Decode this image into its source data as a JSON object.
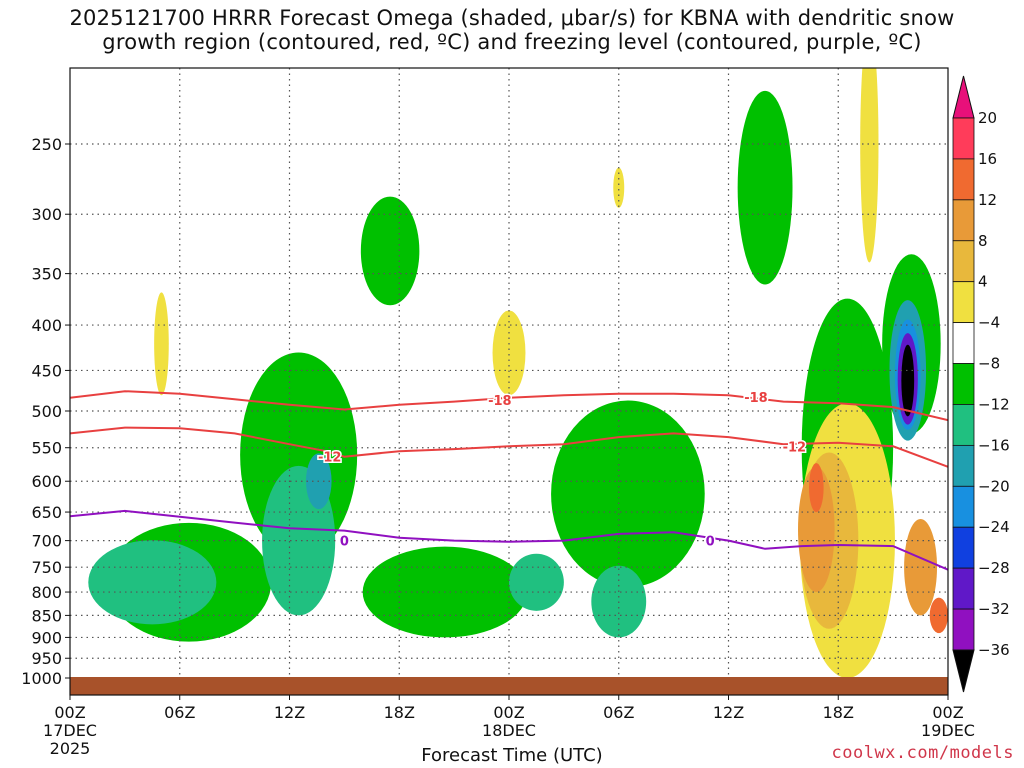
{
  "title_line1": "2025121700 HRRR Forecast Omega (shaded, μbar/s) for KBNA with dendritic snow",
  "title_line2": "growth region (contoured, red, ºC) and freezing level (contoured, purple, ºC)",
  "credit": "coolwx.com/models",
  "chart_data": {
    "type": "heatmap",
    "title": "2025121700 HRRR Forecast Omega (shaded, μbar/s) for KBNA with dendritic snow growth region (contoured, red, ºC) and freezing level (contoured, purple, ºC)",
    "xlabel": "Forecast Time (UTC)",
    "ylabel": "",
    "x_range_hours": [
      0,
      48
    ],
    "y_range_hpa": [
      1000,
      200
    ],
    "y_scale": "log-pressure",
    "grid": true,
    "y_ticks": [
      1000,
      950,
      900,
      850,
      800,
      750,
      700,
      650,
      600,
      550,
      500,
      450,
      400,
      350,
      300,
      250
    ],
    "x_ticks": [
      {
        "hour": 0,
        "label": "00Z",
        "sub": "17DEC",
        "sub2": "2025"
      },
      {
        "hour": 6,
        "label": "06Z",
        "sub": "",
        "sub2": ""
      },
      {
        "hour": 12,
        "label": "12Z",
        "sub": "",
        "sub2": ""
      },
      {
        "hour": 18,
        "label": "18Z",
        "sub": "",
        "sub2": ""
      },
      {
        "hour": 24,
        "label": "00Z",
        "sub": "18DEC",
        "sub2": ""
      },
      {
        "hour": 30,
        "label": "06Z",
        "sub": "",
        "sub2": ""
      },
      {
        "hour": 36,
        "label": "12Z",
        "sub": "",
        "sub2": ""
      },
      {
        "hour": 42,
        "label": "18Z",
        "sub": "",
        "sub2": ""
      },
      {
        "hour": 48,
        "label": "00Z",
        "sub": "19DEC",
        "sub2": ""
      }
    ],
    "colorbar": {
      "levels": [
        20,
        16,
        12,
        8,
        4,
        -4,
        -8,
        -12,
        -16,
        -20,
        -24,
        -28,
        -32,
        -36
      ],
      "colors": [
        "#ff3c5a",
        "#f06a30",
        "#e89a38",
        "#e8b83c",
        "#f0e040",
        "#ffffff",
        "#00c000",
        "#20c080",
        "#20a0b0",
        "#1890e0",
        "#1040e0",
        "#6018c8",
        "#9010c0",
        "#a0a0a0"
      ],
      "top_color": "#e8107a",
      "bottom_color": "#000000"
    },
    "contours": [
      {
        "name": "-18",
        "color": "#e84040",
        "points": [
          [
            0,
            483
          ],
          [
            3,
            475
          ],
          [
            6,
            478
          ],
          [
            9,
            485
          ],
          [
            12,
            492
          ],
          [
            15,
            498
          ],
          [
            18,
            492
          ],
          [
            21,
            488
          ],
          [
            24,
            483
          ],
          [
            27,
            480
          ],
          [
            30,
            478
          ],
          [
            33,
            478
          ],
          [
            36,
            480
          ],
          [
            39,
            488
          ],
          [
            42,
            490
          ],
          [
            45,
            495
          ],
          [
            48,
            512
          ]
        ],
        "labels": [
          [
            23.5,
            486
          ],
          [
            37.5,
            482
          ]
        ]
      },
      {
        "name": "-12",
        "color": "#e84040",
        "points": [
          [
            0,
            530
          ],
          [
            3,
            522
          ],
          [
            6,
            523
          ],
          [
            9,
            530
          ],
          [
            12,
            545
          ],
          [
            14,
            555
          ],
          [
            15,
            563
          ],
          [
            18,
            555
          ],
          [
            21,
            552
          ],
          [
            24,
            548
          ],
          [
            27,
            545
          ],
          [
            30,
            535
          ],
          [
            33,
            530
          ],
          [
            36,
            535
          ],
          [
            39,
            545
          ],
          [
            42,
            543
          ],
          [
            45,
            548
          ],
          [
            48,
            578
          ]
        ],
        "labels": [
          [
            14.2,
            563
          ],
          [
            39.6,
            548
          ]
        ]
      },
      {
        "name": "0",
        "color": "#9010c0",
        "points": [
          [
            0,
            657
          ],
          [
            3,
            648
          ],
          [
            6,
            658
          ],
          [
            9,
            668
          ],
          [
            12,
            678
          ],
          [
            15,
            682
          ],
          [
            18,
            695
          ],
          [
            21,
            700
          ],
          [
            24,
            702
          ],
          [
            27,
            700
          ],
          [
            30,
            688
          ],
          [
            33,
            685
          ],
          [
            36,
            700
          ],
          [
            38,
            715
          ],
          [
            40,
            710
          ],
          [
            42,
            708
          ],
          [
            45,
            710
          ],
          [
            48,
            755
          ]
        ],
        "labels": [
          [
            15,
            700
          ],
          [
            35,
            700
          ]
        ]
      }
    ],
    "omega_blobs": [
      {
        "level": -8,
        "t": 6.5,
        "p": 780,
        "rt": 4.5,
        "rp": 130
      },
      {
        "level": -8,
        "t": 12.5,
        "p": 560,
        "rt": 3.2,
        "rp": 170
      },
      {
        "level": -8,
        "t": 17.5,
        "p": 330,
        "rt": 1.6,
        "rp": 50
      },
      {
        "level": -8,
        "t": 20.5,
        "p": 800,
        "rt": 4.5,
        "rp": 100
      },
      {
        "level": -8,
        "t": 30.5,
        "p": 620,
        "rt": 4.2,
        "rp": 170
      },
      {
        "level": -8,
        "t": 38,
        "p": 280,
        "rt": 1.5,
        "rp": 80
      },
      {
        "level": -8,
        "t": 42.5,
        "p": 550,
        "rt": 2.5,
        "rp": 260
      },
      {
        "level": -8,
        "t": 46,
        "p": 420,
        "rt": 1.6,
        "rp": 110
      },
      {
        "level": -12,
        "t": 4.5,
        "p": 780,
        "rt": 3.5,
        "rp": 90
      },
      {
        "level": -12,
        "t": 12.5,
        "p": 700,
        "rt": 2.0,
        "rp": 150
      },
      {
        "level": -12,
        "t": 25.5,
        "p": 780,
        "rt": 1.5,
        "rp": 60
      },
      {
        "level": -12,
        "t": 30,
        "p": 820,
        "rt": 1.5,
        "rp": 80
      },
      {
        "level": -16,
        "t": 13.6,
        "p": 600,
        "rt": 0.7,
        "rp": 45
      },
      {
        "level": -16,
        "t": 45.8,
        "p": 450,
        "rt": 1.0,
        "rp": 90
      },
      {
        "level": -20,
        "t": 45.8,
        "p": 455,
        "rt": 0.7,
        "rp": 70
      },
      {
        "level": -28,
        "t": 45.8,
        "p": 460,
        "rt": 0.55,
        "rp": 58
      },
      {
        "level": -36,
        "t": 45.8,
        "p": 462,
        "rt": 0.35,
        "rp": 45
      },
      {
        "level": 4,
        "t": 42.5,
        "p": 700,
        "rt": 2.6,
        "rp": 300
      },
      {
        "level": 4,
        "t": 30,
        "p": 280,
        "rt": 0.3,
        "rp": 15
      },
      {
        "level": 4,
        "t": 5,
        "p": 420,
        "rt": 0.4,
        "rp": 60
      },
      {
        "level": 4,
        "t": 24,
        "p": 430,
        "rt": 0.9,
        "rp": 50
      },
      {
        "level": 4,
        "t": 43.7,
        "p": 250,
        "rt": 0.5,
        "rp": 90
      },
      {
        "level": 8,
        "t": 41.5,
        "p": 700,
        "rt": 1.6,
        "rp": 180
      },
      {
        "level": 12,
        "t": 40.8,
        "p": 680,
        "rt": 1.0,
        "rp": 120
      },
      {
        "level": 16,
        "t": 40.8,
        "p": 610,
        "rt": 0.4,
        "rp": 40
      },
      {
        "level": 12,
        "t": 46.5,
        "p": 750,
        "rt": 0.9,
        "rp": 100
      },
      {
        "level": 16,
        "t": 47.5,
        "p": 850,
        "rt": 0.5,
        "rp": 40
      }
    ],
    "terrain_color": "#a8522a"
  }
}
